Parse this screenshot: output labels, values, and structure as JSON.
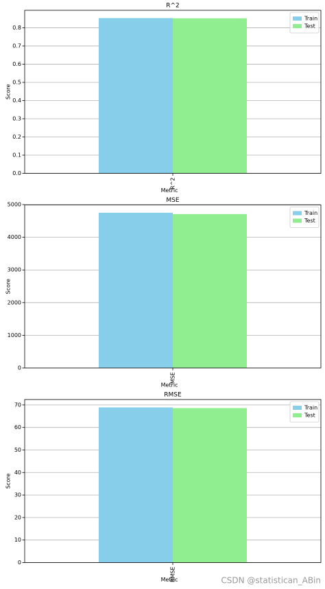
{
  "chart_data": [
    {
      "type": "bar",
      "title": "R^2",
      "xlabel": "Metric",
      "ylabel": "Score",
      "categories": [
        "R^2"
      ],
      "series": [
        {
          "name": "Train",
          "color": "#87ceeb",
          "values": [
            0.853
          ]
        },
        {
          "name": "Test",
          "color": "#90ee90",
          "values": [
            0.852
          ]
        }
      ],
      "ylim": [
        0,
        0.896
      ],
      "yticks": [
        {
          "value": 0,
          "label": "0.0"
        },
        0.1,
        0.2,
        0.3,
        0.4,
        0.5,
        0.6,
        0.7,
        0.8
      ],
      "grid": true,
      "legend": "upper right"
    },
    {
      "type": "bar",
      "title": "MSE",
      "xlabel": "Metric",
      "ylabel": "Score",
      "categories": [
        "MSE"
      ],
      "series": [
        {
          "name": "Train",
          "color": "#87ceeb",
          "values": [
            4750
          ]
        },
        {
          "name": "Test",
          "color": "#90ee90",
          "values": [
            4710
          ]
        }
      ],
      "ylim": [
        0,
        4990
      ],
      "yticks": [
        0,
        1000,
        2000,
        3000,
        4000,
        5000
      ],
      "grid": true,
      "legend": "upper right"
    },
    {
      "type": "bar",
      "title": "RMSE",
      "xlabel": "Metric",
      "ylabel": "Score",
      "categories": [
        "RMSE"
      ],
      "series": [
        {
          "name": "Train",
          "color": "#87ceeb",
          "values": [
            68.9
          ]
        },
        {
          "name": "Test",
          "color": "#90ee90",
          "values": [
            68.6
          ]
        }
      ],
      "ylim": [
        0,
        72.4
      ],
      "yticks": [
        0,
        10,
        20,
        30,
        40,
        50,
        60,
        70
      ],
      "grid": true,
      "legend": "upper right"
    }
  ],
  "watermark": "CSDN @statistican_ABin"
}
